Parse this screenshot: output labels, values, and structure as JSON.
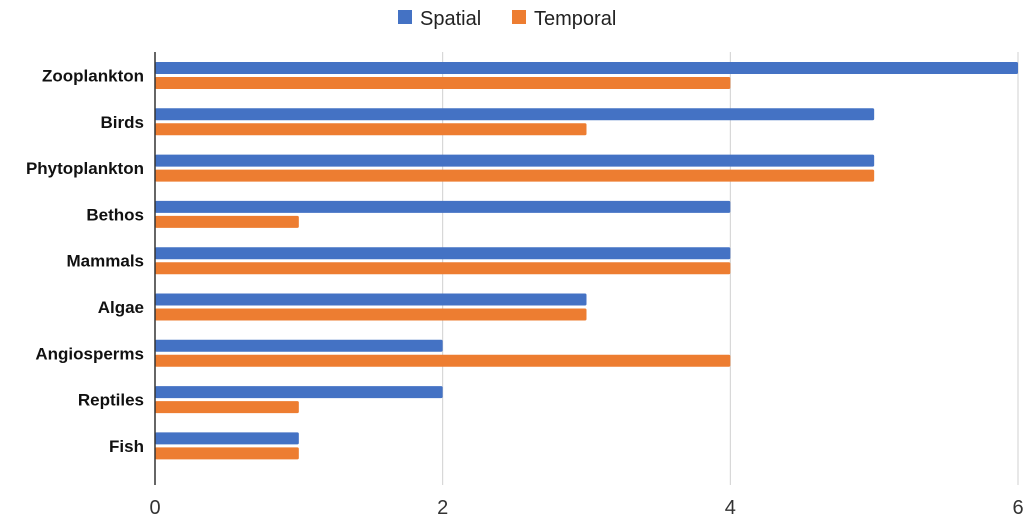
{
  "chart_data": {
    "type": "bar",
    "orientation": "horizontal",
    "categories": [
      "Zooplankton",
      "Birds",
      "Phytoplankton",
      "Bethos",
      "Mammals",
      "Algae",
      "Angiosperms",
      "Reptiles",
      "Fish"
    ],
    "series": [
      {
        "name": "Spatial",
        "color": "#4472C4",
        "values": [
          6,
          5,
          5,
          4,
          4,
          3,
          2,
          2,
          1
        ]
      },
      {
        "name": "Temporal",
        "color": "#ED7D31",
        "values": [
          4,
          3,
          5,
          1,
          4,
          3,
          4,
          1,
          1
        ]
      }
    ],
    "xlim": [
      0,
      6
    ],
    "xticks": [
      "0",
      "2",
      "4",
      "6"
    ],
    "title": "",
    "xlabel": "",
    "ylabel": "",
    "grid": "vertical",
    "legend": "top-center"
  }
}
